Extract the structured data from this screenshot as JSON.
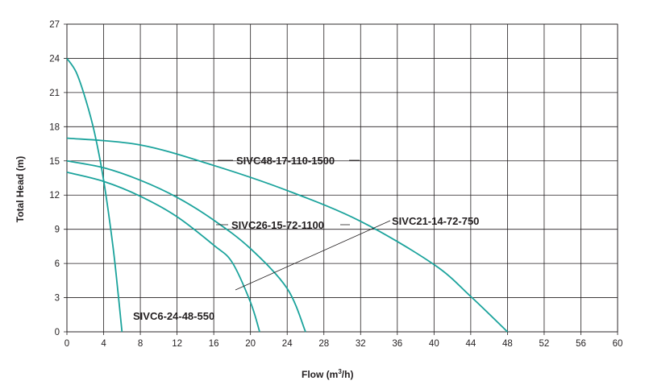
{
  "chart_data": {
    "type": "line",
    "xlabel": "Flow (m",
    "xlabel_sup": "3",
    "xlabel_tail": "/h)",
    "ylabel": "Total Head (m)",
    "xlim": [
      0,
      60
    ],
    "ylim": [
      0,
      27
    ],
    "x_ticks": [
      "0",
      "4",
      "8",
      "12",
      "16",
      "20",
      "24",
      "28",
      "32",
      "36",
      "40",
      "44",
      "48",
      "52",
      "56",
      "60"
    ],
    "y_ticks": [
      "0",
      "3",
      "6",
      "9",
      "12",
      "15",
      "18",
      "21",
      "24",
      "27"
    ],
    "grid": true,
    "line_color": "#1ba39c",
    "series": [
      {
        "name": "SIVC48-17-110-1500",
        "points": [
          [
            0,
            17
          ],
          [
            8,
            16.4
          ],
          [
            16,
            14.6
          ],
          [
            24,
            12.4
          ],
          [
            32,
            9.7
          ],
          [
            40,
            5.9
          ],
          [
            44,
            3.1
          ],
          [
            48,
            0
          ]
        ]
      },
      {
        "name": "SIVC21-14-72-750",
        "points": [
          [
            0,
            14
          ],
          [
            4,
            13.2
          ],
          [
            8,
            11.9
          ],
          [
            12,
            10.1
          ],
          [
            16,
            7.6
          ],
          [
            18,
            6.1
          ],
          [
            20,
            2.6
          ],
          [
            21,
            0
          ]
        ]
      },
      {
        "name": "SIVC26-15-72-1100",
        "points": [
          [
            0,
            15
          ],
          [
            4,
            14.4
          ],
          [
            8,
            13.3
          ],
          [
            12,
            11.8
          ],
          [
            16,
            9.8
          ],
          [
            20,
            7.3
          ],
          [
            24,
            3.8
          ],
          [
            26,
            0
          ]
        ]
      },
      {
        "name": "SIVC6-24-48-550",
        "points": [
          [
            0,
            24
          ],
          [
            1,
            22.8
          ],
          [
            2,
            20.5
          ],
          [
            3,
            17.5
          ],
          [
            4,
            13.3
          ],
          [
            5,
            7.6
          ],
          [
            5.6,
            3.2
          ],
          [
            6,
            0
          ]
        ]
      }
    ]
  }
}
